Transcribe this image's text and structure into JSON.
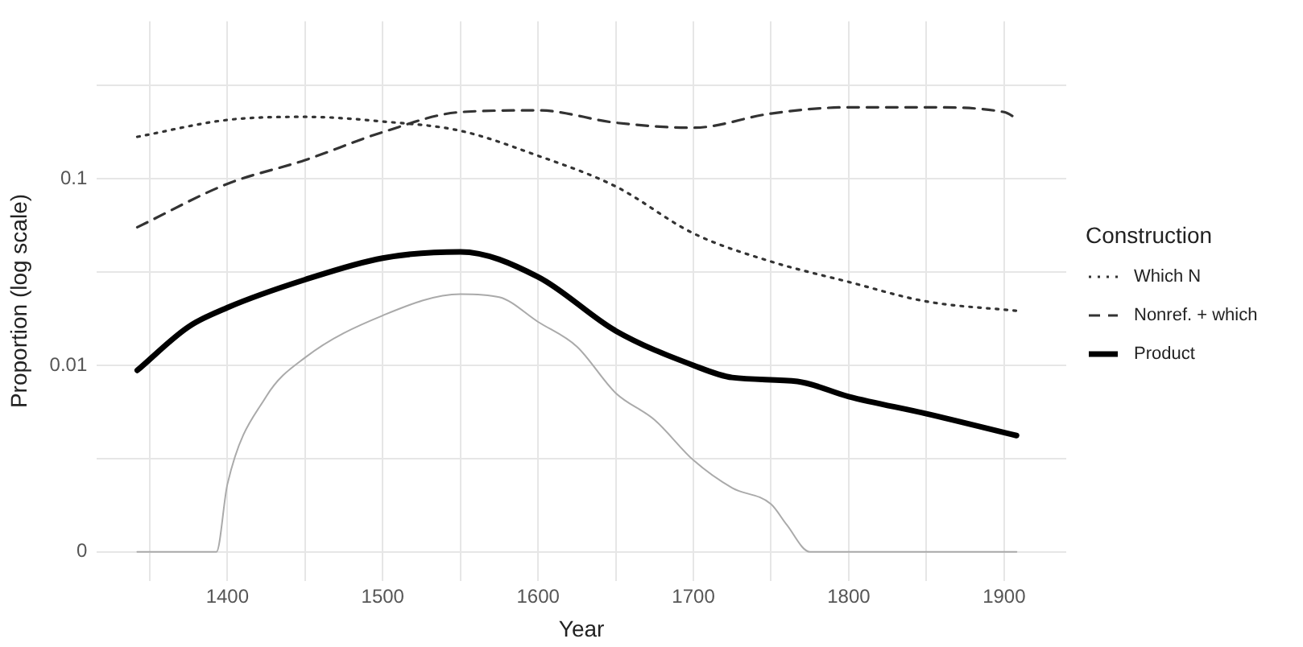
{
  "chart_data": {
    "type": "line",
    "xlabel": "Year",
    "ylabel": "Proportion (log scale)",
    "legend_title": "Construction",
    "log": "y",
    "grid": true,
    "legend": "right",
    "xlim": [
      1316,
      1940
    ],
    "ylim": [
      0.0007,
      0.7
    ],
    "xticks": [
      {
        "value": 1350,
        "label": null
      },
      1400,
      {
        "value": 1450,
        "label": null
      },
      1500,
      {
        "value": 1550,
        "label": null
      },
      1600,
      {
        "value": 1650,
        "label": null
      },
      1700,
      {
        "value": 1750,
        "label": null
      },
      1800,
      {
        "value": 1850,
        "label": null
      },
      1900
    ],
    "yticks": [
      {
        "value": 0.001,
        "label": "0"
      },
      {
        "value": 0.00316,
        "label": null
      },
      0.01,
      {
        "value": 0.0316,
        "label": null
      },
      0.1,
      {
        "value": 0.316,
        "label": null
      }
    ],
    "series": [
      {
        "name": "Which N",
        "color": "#333333",
        "line_style": "dotted",
        "x": [
          1342,
          1400,
          1450,
          1500,
          1550,
          1600,
          1650,
          1700,
          1750,
          1800,
          1850,
          1908
        ],
        "values": [
          0.168,
          0.207,
          0.215,
          0.203,
          0.181,
          0.133,
          0.091,
          0.051,
          0.036,
          0.028,
          0.022,
          0.0196
        ]
      },
      {
        "name": "Nonref. + which",
        "color": "#333333",
        "line_style": "dashed",
        "x": [
          1342,
          1400,
          1450,
          1500,
          1550,
          1600,
          1650,
          1700,
          1750,
          1800,
          1850,
          1900,
          1908
        ],
        "values": [
          0.055,
          0.094,
          0.126,
          0.178,
          0.228,
          0.233,
          0.2,
          0.188,
          0.224,
          0.242,
          0.242,
          0.228,
          0.211
        ]
      },
      {
        "name": "Product",
        "color": "#000000",
        "line_style": "solid",
        "x": [
          1342,
          1375,
          1400,
          1450,
          1500,
          1550,
          1600,
          1650,
          1700,
          1725,
          1767,
          1800,
          1850,
          1908
        ],
        "values": [
          0.0094,
          0.0161,
          0.0204,
          0.0288,
          0.0376,
          0.0406,
          0.0298,
          0.0153,
          0.01,
          0.0086,
          0.0082,
          0.0068,
          0.0055,
          0.0042
        ]
      },
      {
        "color": "#aaaaaa",
        "line_style": "solid",
        "x": [
          1342,
          1393,
          1400,
          1425,
          1450,
          1500,
          1550,
          1575,
          1600,
          1625,
          1650,
          1675,
          1700,
          1725,
          1750,
          1760,
          1775,
          1908
        ],
        "values": [
          0.001,
          0.001,
          0.0023,
          0.0068,
          0.011,
          0.0185,
          0.0241,
          0.0232,
          0.0171,
          0.0126,
          0.0071,
          0.0051,
          0.0031,
          0.0022,
          0.0018,
          0.0014,
          0.001,
          0.001
        ]
      }
    ]
  }
}
